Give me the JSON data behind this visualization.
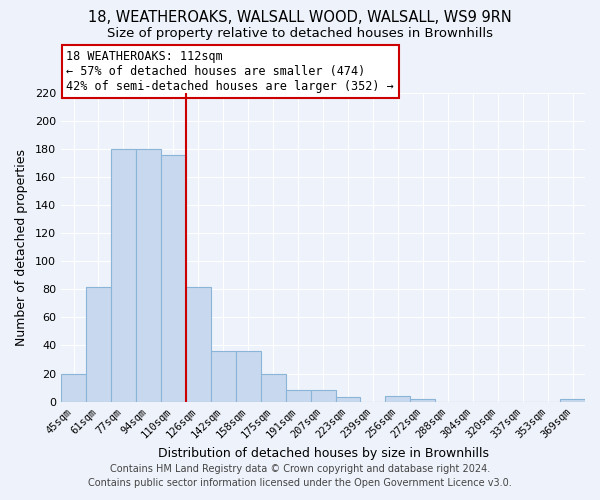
{
  "title": "18, WEATHEROAKS, WALSALL WOOD, WALSALL, WS9 9RN",
  "subtitle": "Size of property relative to detached houses in Brownhills",
  "xlabel": "Distribution of detached houses by size in Brownhills",
  "ylabel": "Number of detached properties",
  "bar_labels": [
    "45sqm",
    "61sqm",
    "77sqm",
    "94sqm",
    "110sqm",
    "126sqm",
    "142sqm",
    "158sqm",
    "175sqm",
    "191sqm",
    "207sqm",
    "223sqm",
    "239sqm",
    "256sqm",
    "272sqm",
    "288sqm",
    "304sqm",
    "320sqm",
    "337sqm",
    "353sqm",
    "369sqm"
  ],
  "bar_values": [
    20,
    82,
    180,
    180,
    176,
    82,
    36,
    36,
    20,
    8,
    8,
    3,
    0,
    4,
    2,
    0,
    0,
    0,
    0,
    0,
    2
  ],
  "bar_color": "#c8d8ee",
  "bar_edgecolor": "#8ab4d8",
  "marker_color": "#cc0000",
  "marker_index": 4,
  "ylim": [
    0,
    220
  ],
  "yticks": [
    0,
    20,
    40,
    60,
    80,
    100,
    120,
    140,
    160,
    180,
    200,
    220
  ],
  "annotation_title": "18 WEATHEROAKS: 112sqm",
  "annotation_line1": "← 57% of detached houses are smaller (474)",
  "annotation_line2": "42% of semi-detached houses are larger (352) →",
  "annotation_box_color": "#ffffff",
  "annotation_box_edgecolor": "#cc0000",
  "footer1": "Contains HM Land Registry data © Crown copyright and database right 2024.",
  "footer2": "Contains public sector information licensed under the Open Government Licence v3.0.",
  "background_color": "#eef2fa",
  "grid_color": "#ffffff",
  "title_fontsize": 10.5,
  "subtitle_fontsize": 9.5,
  "axis_fontsize": 9,
  "tick_fontsize": 7.5,
  "footer_fontsize": 7.0
}
